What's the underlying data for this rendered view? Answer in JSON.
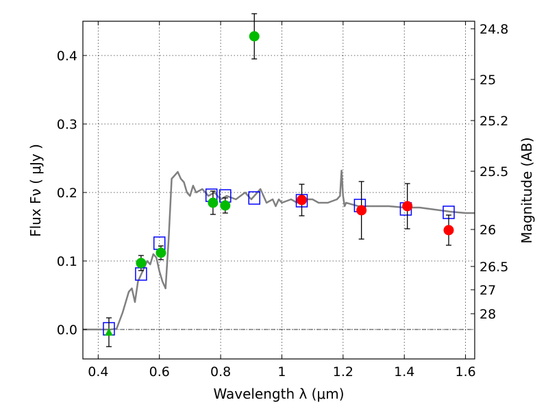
{
  "chart_data": {
    "type": "scatter",
    "title": "",
    "xlabel": "Wavelength  λ (μm)",
    "ylabel": "Flux  Fν ( μJy )",
    "ylabel_right": "Magnitude (AB)",
    "xlim": [
      0.35,
      1.63
    ],
    "ylim": [
      -0.043,
      0.45
    ],
    "grid": true,
    "x_ticks": [
      0.4,
      0.6,
      0.8,
      1.0,
      1.2,
      1.4,
      1.6
    ],
    "x_tick_labels": [
      "0.4",
      "0.6",
      "0.8",
      "1",
      "1.2",
      "1.4",
      "1.6"
    ],
    "y_ticks": [
      0.0,
      0.1,
      0.2,
      0.3,
      0.4
    ],
    "y_tick_labels": [
      "0.0",
      "0.1",
      "0.2",
      "0.3",
      "0.4"
    ],
    "right_ticks": [
      {
        "label": "24.8",
        "flux": 0.439
      },
      {
        "label": "25",
        "flux": 0.365
      },
      {
        "label": "25.2",
        "flux": 0.305
      },
      {
        "label": "25.5",
        "flux": 0.231
      },
      {
        "label": "26",
        "flux": 0.146
      },
      {
        "label": "26.5",
        "flux": 0.092
      },
      {
        "label": "27",
        "flux": 0.058
      },
      {
        "label": "28",
        "flux": 0.023
      }
    ],
    "series": [
      {
        "name": "Model SED",
        "kind": "line",
        "color": "#808080",
        "x": [
          0.35,
          0.44,
          0.46,
          0.48,
          0.5,
          0.51,
          0.52,
          0.53,
          0.54,
          0.55,
          0.56,
          0.57,
          0.58,
          0.59,
          0.6,
          0.61,
          0.62,
          0.63,
          0.64,
          0.65,
          0.66,
          0.67,
          0.68,
          0.69,
          0.7,
          0.71,
          0.72,
          0.74,
          0.76,
          0.78,
          0.8,
          0.82,
          0.85,
          0.88,
          0.9,
          0.93,
          0.95,
          0.97,
          0.98,
          0.99,
          1.0,
          1.03,
          1.05,
          1.08,
          1.1,
          1.12,
          1.15,
          1.18,
          1.19,
          1.195,
          1.2,
          1.205,
          1.21,
          1.25,
          1.3,
          1.35,
          1.4,
          1.45,
          1.5,
          1.55,
          1.6,
          1.63
        ],
        "y": [
          0.0,
          0.0,
          0.001,
          0.025,
          0.055,
          0.06,
          0.04,
          0.07,
          0.08,
          0.09,
          0.1,
          0.095,
          0.11,
          0.105,
          0.085,
          0.07,
          0.06,
          0.13,
          0.22,
          0.225,
          0.23,
          0.22,
          0.215,
          0.2,
          0.195,
          0.21,
          0.2,
          0.205,
          0.195,
          0.2,
          0.19,
          0.195,
          0.19,
          0.2,
          0.19,
          0.205,
          0.185,
          0.19,
          0.18,
          0.19,
          0.185,
          0.19,
          0.185,
          0.19,
          0.19,
          0.185,
          0.185,
          0.19,
          0.195,
          0.232,
          0.195,
          0.18,
          0.185,
          0.18,
          0.18,
          0.18,
          0.178,
          0.178,
          0.175,
          0.172,
          0.17,
          0.17
        ]
      },
      {
        "name": "Model photometry",
        "kind": "square",
        "color": "#0000ff",
        "x": [
          0.435,
          0.54,
          0.6,
          0.77,
          0.815,
          0.91,
          1.065,
          1.255,
          1.405,
          1.545
        ],
        "y": [
          0.001,
          0.081,
          0.126,
          0.196,
          0.195,
          0.192,
          0.188,
          0.181,
          0.176,
          0.171
        ]
      },
      {
        "name": "Optical detections",
        "kind": "circle",
        "color": "#00bb00",
        "x": [
          0.54,
          0.605,
          0.775,
          0.815,
          0.91
        ],
        "y": [
          0.097,
          0.112,
          0.185,
          0.181,
          0.428
        ],
        "err": [
          0.011,
          0.01,
          0.017,
          0.011,
          0.033
        ]
      },
      {
        "name": "Optical upper limit",
        "kind": "triangle",
        "color": "#00bb00",
        "x": [
          0.435
        ],
        "y": [
          -0.004
        ],
        "err": [
          0.021
        ]
      },
      {
        "name": "Near-IR detections",
        "kind": "circle",
        "color": "#ff0000",
        "x": [
          1.065,
          1.26,
          1.41,
          1.545
        ],
        "y": [
          0.189,
          0.174,
          0.18,
          0.145
        ],
        "err": [
          0.023,
          0.042,
          0.033,
          0.022
        ]
      }
    ]
  }
}
